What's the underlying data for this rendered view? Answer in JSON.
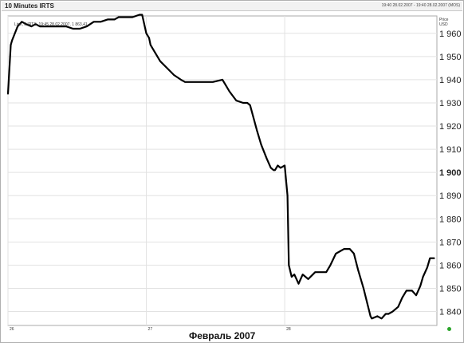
{
  "chart_data": {
    "type": "line",
    "title": "10 Minutes IRTS",
    "timestamp": "19:40 28.02.2007 - 19:40 28.02.2007 (MOS)",
    "legend": "Line, 0.IRTS, 19:45 28.02.2007, 1 863,41",
    "price_label": "Price",
    "currency_label": "USD",
    "xlabel": "Февраль 2007",
    "x_ticks": [
      "26",
      "27",
      "28"
    ],
    "y_ticks": [
      "1 840",
      "1 850",
      "1 860",
      "1 870",
      "1 880",
      "1 890",
      "1 900",
      "1 910",
      "1 920",
      "1 930",
      "1 940",
      "1 950",
      "1 960"
    ],
    "y_tick_values": [
      1840,
      1850,
      1860,
      1870,
      1880,
      1890,
      1900,
      1910,
      1920,
      1930,
      1940,
      1950,
      1960
    ],
    "bold_tick": "1 900",
    "ylim": [
      1834,
      1967.5
    ],
    "xlim": [
      26,
      29.1
    ],
    "grid": true,
    "line_color": "#000000",
    "series": [
      {
        "x": [
          26.0,
          26.02,
          26.03,
          26.07,
          26.1,
          26.13,
          26.17,
          26.2,
          26.23,
          26.27,
          26.3,
          26.35,
          26.42,
          26.47,
          26.52,
          26.57,
          26.62,
          26.67,
          26.72,
          26.77,
          26.8,
          26.85,
          26.9,
          26.95,
          26.97,
          27.0,
          27.02,
          27.03,
          27.05,
          27.1,
          27.15,
          27.2,
          27.25,
          27.28,
          27.3,
          27.35,
          27.42,
          27.48,
          27.55,
          27.57,
          27.6,
          27.65,
          27.7,
          27.73,
          27.75,
          27.8,
          27.83,
          27.87,
          27.9,
          27.92,
          27.93,
          27.95,
          27.97,
          28.0,
          28.02,
          28.03,
          28.05,
          28.07,
          28.1,
          28.13,
          28.17,
          28.22,
          28.27,
          28.3,
          28.33,
          28.37,
          28.4,
          28.43,
          28.47,
          28.5,
          28.53,
          28.57,
          28.62,
          28.63,
          28.67,
          28.7,
          28.73,
          28.75,
          28.78,
          28.82,
          28.85,
          28.88,
          28.92,
          28.95,
          28.98,
          29.0,
          29.03,
          29.05,
          29.08
        ],
        "y": [
          1934,
          1955,
          1957,
          1963,
          1965,
          1964,
          1963,
          1964,
          1963,
          1963,
          1963,
          1963,
          1963,
          1962,
          1962,
          1963,
          1965,
          1965,
          1966,
          1966,
          1967,
          1967,
          1967,
          1968,
          1968,
          1960,
          1958,
          1955,
          1953,
          1948,
          1945,
          1942,
          1940,
          1939,
          1939,
          1939,
          1939,
          1939,
          1940,
          1938,
          1935,
          1931,
          1930,
          1930,
          1929,
          1918,
          1912,
          1906,
          1902,
          1901,
          1901,
          1903,
          1902,
          1903,
          1890,
          1860,
          1855,
          1856,
          1852,
          1856,
          1854,
          1857,
          1857,
          1857,
          1860,
          1865,
          1866,
          1867,
          1867,
          1865,
          1858,
          1850,
          1838,
          1837,
          1838,
          1837,
          1839,
          1839,
          1840,
          1842,
          1846,
          1849,
          1849,
          1847,
          1851,
          1855,
          1859,
          1863,
          1863
        ]
      }
    ]
  }
}
